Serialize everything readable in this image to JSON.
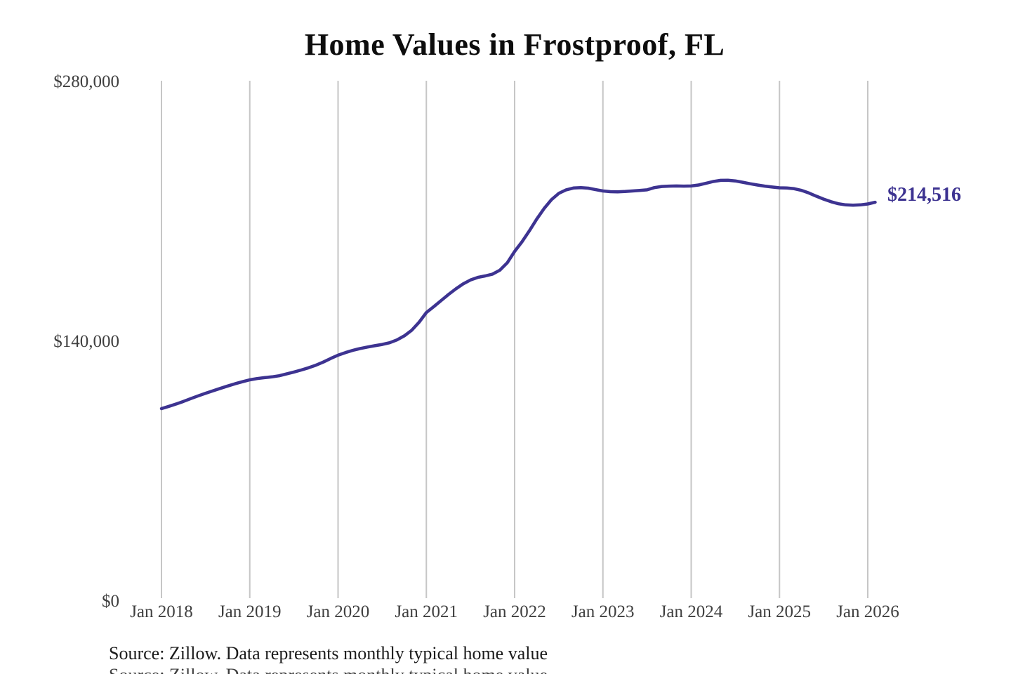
{
  "chart": {
    "title": "Home Values in Frostproof, FL",
    "end_label": "$214,516",
    "source": "Source: Zillow. Data represents monthly typical home value",
    "colors": {
      "line": "#3d3391",
      "annotation": "#3d3391",
      "grid": "#c6c6c6",
      "tick": "#3f3f3f",
      "title": "#0d0d0d",
      "source": "#1b1b1b"
    }
  },
  "chart_data": {
    "type": "line",
    "title": "Home Values in Frostproof, FL",
    "xlabel": "",
    "ylabel": "",
    "ylim": [
      0,
      280000
    ],
    "y_ticks": [
      0,
      140000,
      280000
    ],
    "y_tick_labels": [
      "$0",
      "$140,000",
      "$280,000"
    ],
    "x_tick_labels": [
      "Jan 2018",
      "Jan 2019",
      "Jan 2020",
      "Jan 2021",
      "Jan 2022",
      "Jan 2023",
      "Jan 2024",
      "Jan 2025",
      "Jan 2026"
    ],
    "x_start": "2018-01",
    "x_interval": "month",
    "grid": "vertical-only",
    "legend_position": "none",
    "end_annotation": {
      "text": "$214,516",
      "value": 214516,
      "x": "2026-02"
    },
    "series": [
      {
        "name": "Monthly typical home value",
        "values": [
          103300,
          104500,
          105800,
          107200,
          108700,
          110200,
          111600,
          112900,
          114200,
          115500,
          116700,
          117800,
          118800,
          119500,
          120000,
          120400,
          121000,
          122000,
          123000,
          124100,
          125300,
          126700,
          128400,
          130300,
          132100,
          133500,
          134700,
          135700,
          136500,
          137200,
          137900,
          138800,
          140300,
          142500,
          145500,
          149800,
          155100,
          158200,
          161500,
          164800,
          167800,
          170500,
          172600,
          174000,
          174800,
          175800,
          177900,
          181900,
          188000,
          193200,
          199100,
          205400,
          211100,
          215900,
          219300,
          221200,
          222200,
          222400,
          222100,
          221300,
          220600,
          220200,
          220100,
          220300,
          220600,
          220900,
          221200,
          222400,
          223000,
          223200,
          223300,
          223200,
          223300,
          223800,
          224700,
          225700,
          226300,
          226400,
          226000,
          225300,
          224500,
          223800,
          223200,
          222700,
          222300,
          222200,
          221800,
          220900,
          219500,
          217800,
          216200,
          214800,
          213700,
          213100,
          212900,
          213100,
          213600,
          214516
        ]
      }
    ]
  }
}
